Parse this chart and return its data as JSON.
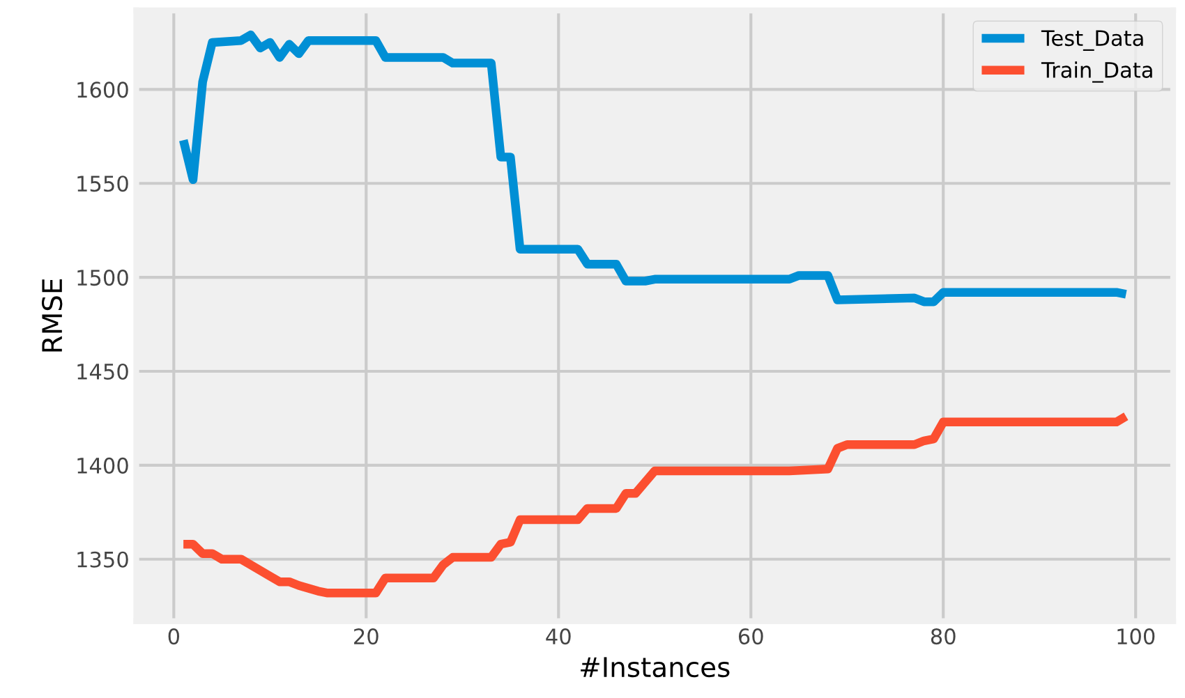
{
  "chart_data": {
    "type": "line",
    "xlabel": "#Instances",
    "ylabel": "RMSE",
    "xlim": [
      -3.9,
      103.9
    ],
    "ylim": [
      1317,
      1642
    ],
    "xticks": [
      0,
      20,
      40,
      60,
      80,
      100
    ],
    "yticks": [
      1350,
      1400,
      1450,
      1500,
      1550,
      1600
    ],
    "grid": true,
    "legend": "top right",
    "marker": "none",
    "line_style": "solid",
    "series": [
      {
        "name": "Test_Data",
        "color": "#008fd5",
        "x": [
          1,
          2,
          3,
          4,
          7,
          8,
          9,
          10,
          11,
          12,
          13,
          14,
          21,
          22,
          28,
          29,
          33,
          34,
          35,
          36,
          42,
          43,
          46,
          47,
          49,
          50,
          64,
          65,
          68,
          69,
          77,
          78,
          79,
          80,
          98,
          99
        ],
        "values": [
          1573,
          1552,
          1604,
          1625,
          1626,
          1629,
          1622,
          1625,
          1617,
          1624,
          1619,
          1626,
          1626,
          1617,
          1617,
          1614,
          1614,
          1564,
          1564,
          1515,
          1515,
          1507,
          1507,
          1498,
          1498,
          1499,
          1499,
          1501,
          1501,
          1488,
          1489,
          1487,
          1487,
          1492,
          1492,
          1491
        ]
      },
      {
        "name": "Train_Data",
        "color": "#fc4f30",
        "x": [
          1,
          2,
          3,
          4,
          5,
          7,
          8,
          10,
          11,
          12,
          13,
          15,
          16,
          21,
          22,
          27,
          28,
          29,
          33,
          34,
          35,
          36,
          42,
          43,
          46,
          47,
          48,
          50,
          64,
          68,
          69,
          70,
          77,
          78,
          79,
          80,
          98,
          99
        ],
        "values": [
          1358,
          1358,
          1353,
          1353,
          1350,
          1350,
          1347,
          1341,
          1338,
          1338,
          1336,
          1333,
          1332,
          1332,
          1340,
          1340,
          1347,
          1351,
          1351,
          1358,
          1359,
          1371,
          1371,
          1377,
          1377,
          1385,
          1385,
          1397,
          1397,
          1398,
          1409,
          1411,
          1411,
          1413,
          1414,
          1423,
          1423,
          1426
        ]
      }
    ]
  }
}
